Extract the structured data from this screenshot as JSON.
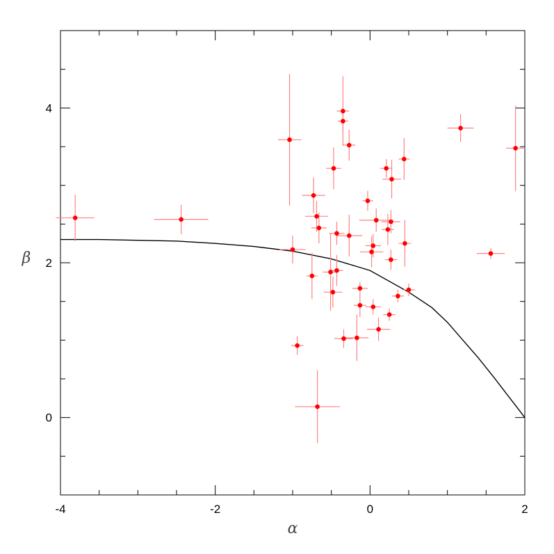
{
  "chart_data": {
    "type": "scatter",
    "title": "",
    "xlabel": "α",
    "ylabel": "β",
    "xlim": [
      -4,
      2
    ],
    "ylim": [
      -1,
      5
    ],
    "x_ticks": [
      -4,
      -2,
      0,
      2
    ],
    "y_ticks": [
      0,
      2,
      4
    ],
    "grid": false,
    "marker_color": "#ff0000",
    "errorbar_color": "#ff8080",
    "curve_color": "#000000",
    "points": [
      {
        "x": -3.81,
        "y": 2.58,
        "xerr": 0.25,
        "yerr": 0.3
      },
      {
        "x": -2.44,
        "y": 2.56,
        "xerr": 0.35,
        "yerr": 0.19
      },
      {
        "x": -1.04,
        "y": 3.59,
        "xerr": 0.15,
        "yerr": 0.85
      },
      {
        "x": -1.0,
        "y": 2.17,
        "xerr": 0.17,
        "yerr": 0.18
      },
      {
        "x": -0.94,
        "y": 0.93,
        "xerr": 0.08,
        "yerr": 0.12
      },
      {
        "x": -0.75,
        "y": 1.83,
        "xerr": 0.07,
        "yerr": 0.3
      },
      {
        "x": -0.73,
        "y": 2.87,
        "xerr": 0.15,
        "yerr": 0.23
      },
      {
        "x": -0.69,
        "y": 2.6,
        "xerr": 0.15,
        "yerr": 0.2
      },
      {
        "x": -0.68,
        "y": 0.14,
        "xerr": 0.29,
        "yerr": 0.47
      },
      {
        "x": -0.66,
        "y": 2.45,
        "xerr": 0.1,
        "yerr": 0.2
      },
      {
        "x": -0.51,
        "y": 1.88,
        "xerr": 0.1,
        "yerr": 0.5
      },
      {
        "x": -0.48,
        "y": 1.62,
        "xerr": 0.12,
        "yerr": 0.2
      },
      {
        "x": -0.47,
        "y": 3.22,
        "xerr": 0.1,
        "yerr": 0.27
      },
      {
        "x": -0.43,
        "y": 2.38,
        "xerr": 0.1,
        "yerr": 0.15
      },
      {
        "x": -0.43,
        "y": 1.9,
        "xerr": 0.08,
        "yerr": 0.2
      },
      {
        "x": -0.35,
        "y": 3.96,
        "xerr": 0.08,
        "yerr": 0.45
      },
      {
        "x": -0.35,
        "y": 3.83,
        "xerr": 0.07,
        "yerr": 0.13
      },
      {
        "x": -0.34,
        "y": 1.02,
        "xerr": 0.12,
        "yerr": 0.12
      },
      {
        "x": -0.27,
        "y": 3.52,
        "xerr": 0.08,
        "yerr": 0.2
      },
      {
        "x": -0.27,
        "y": 2.35,
        "xerr": 0.17,
        "yerr": 0.27
      },
      {
        "x": -0.17,
        "y": 1.03,
        "xerr": 0.15,
        "yerr": 0.3
      },
      {
        "x": -0.13,
        "y": 1.67,
        "xerr": 0.1,
        "yerr": 0.08
      },
      {
        "x": -0.13,
        "y": 1.45,
        "xerr": 0.08,
        "yerr": 0.15
      },
      {
        "x": -0.03,
        "y": 2.8,
        "xerr": 0.07,
        "yerr": 0.13
      },
      {
        "x": 0.02,
        "y": 2.14,
        "xerr": 0.15,
        "yerr": 0.2
      },
      {
        "x": 0.04,
        "y": 2.22,
        "xerr": 0.1,
        "yerr": 0.15
      },
      {
        "x": 0.04,
        "y": 1.43,
        "xerr": 0.1,
        "yerr": 0.1
      },
      {
        "x": 0.08,
        "y": 2.55,
        "xerr": 0.22,
        "yerr": 0.15
      },
      {
        "x": 0.11,
        "y": 1.14,
        "xerr": 0.15,
        "yerr": 0.15
      },
      {
        "x": 0.21,
        "y": 3.22,
        "xerr": 0.08,
        "yerr": 0.12
      },
      {
        "x": 0.23,
        "y": 2.43,
        "xerr": 0.08,
        "yerr": 0.2
      },
      {
        "x": 0.25,
        "y": 1.33,
        "xerr": 0.08,
        "yerr": 0.08
      },
      {
        "x": 0.27,
        "y": 2.53,
        "xerr": 0.12,
        "yerr": 0.15
      },
      {
        "x": 0.27,
        "y": 2.04,
        "xerr": 0.08,
        "yerr": 0.13
      },
      {
        "x": 0.28,
        "y": 3.08,
        "xerr": 0.12,
        "yerr": 0.25
      },
      {
        "x": 0.36,
        "y": 1.57,
        "xerr": 0.08,
        "yerr": 0.08
      },
      {
        "x": 0.44,
        "y": 3.34,
        "xerr": 0.07,
        "yerr": 0.27
      },
      {
        "x": 0.45,
        "y": 2.25,
        "xerr": 0.08,
        "yerr": 0.3
      },
      {
        "x": 0.5,
        "y": 1.65,
        "xerr": 0.08,
        "yerr": 0.08
      },
      {
        "x": 1.17,
        "y": 3.74,
        "xerr": 0.17,
        "yerr": 0.18
      },
      {
        "x": 1.56,
        "y": 2.12,
        "xerr": 0.18,
        "yerr": 0.07
      },
      {
        "x": 1.88,
        "y": 3.48,
        "xerr": 0.12,
        "yerr": 0.55
      }
    ],
    "curve": {
      "x": [
        -4.0,
        -3.5,
        -3.0,
        -2.5,
        -2.0,
        -1.5,
        -1.0,
        -0.5,
        0.0,
        0.5,
        0.8,
        1.0,
        1.2,
        1.4,
        1.6,
        1.8,
        1.9,
        2.0
      ],
      "y": [
        2.3,
        2.3,
        2.29,
        2.28,
        2.25,
        2.21,
        2.15,
        2.05,
        1.9,
        1.62,
        1.42,
        1.23,
        1.0,
        0.77,
        0.52,
        0.26,
        0.13,
        0.0
      ]
    }
  }
}
